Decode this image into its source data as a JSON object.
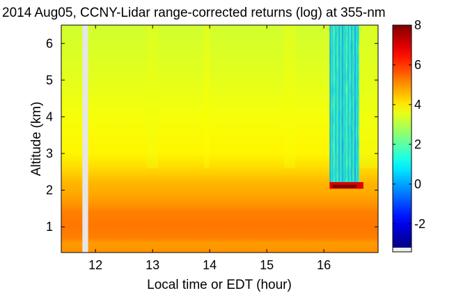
{
  "chart_data": {
    "type": "heatmap",
    "title": "2014 Aug05, CCNY-Lidar range-corrected returns (log) at 355-nm",
    "xlabel": "Local time or EDT (hour)",
    "ylabel": "Altitude (km)",
    "xlim": [
      11.4,
      16.95
    ],
    "ylim": [
      0.3,
      6.5
    ],
    "x_ticks": [
      12,
      13,
      14,
      15,
      16
    ],
    "y_ticks": [
      1,
      2,
      3,
      4,
      5,
      6
    ],
    "colorbar": {
      "range": [
        -3.2,
        8
      ],
      "ticks": [
        -2,
        0,
        2,
        4,
        6,
        8
      ],
      "colormap": "jet",
      "min_color": "#00008f",
      "max_color": "#800000"
    },
    "features": {
      "data_gap": {
        "x_range": [
          11.77,
          11.87
        ],
        "color": "#e6e6e6"
      },
      "boundary_layer": {
        "top_km": 2.2,
        "log_return": [
          4.6,
          5.3
        ]
      },
      "free_troposphere_log_return": [
        3.3,
        3.9
      ],
      "cloud_signal_attenuation": {
        "x_range": [
          16.1,
          16.62
        ],
        "above_km": 2.2,
        "log_return": [
          -1,
          2.5
        ]
      },
      "cloud_base_peak": {
        "altitude_km": 2.1,
        "log_return": [
          7,
          8
        ]
      }
    }
  }
}
